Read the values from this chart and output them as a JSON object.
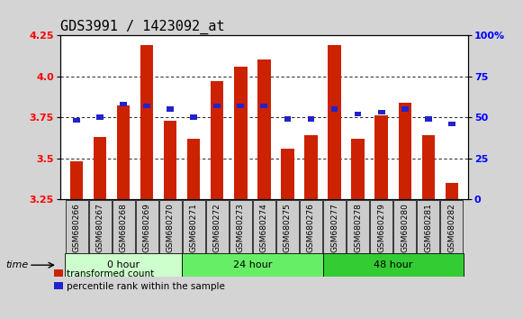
{
  "title": "GDS3991 / 1423092_at",
  "samples": [
    "GSM680266",
    "GSM680267",
    "GSM680268",
    "GSM680269",
    "GSM680270",
    "GSM680271",
    "GSM680272",
    "GSM680273",
    "GSM680274",
    "GSM680275",
    "GSM680276",
    "GSM680277",
    "GSM680278",
    "GSM680279",
    "GSM680280",
    "GSM680281",
    "GSM680282"
  ],
  "bar_values": [
    3.48,
    3.63,
    3.82,
    4.19,
    3.73,
    3.62,
    3.97,
    4.06,
    4.1,
    3.56,
    3.64,
    4.19,
    3.62,
    3.76,
    3.84,
    3.64,
    3.35
  ],
  "blue_pct": [
    48,
    50,
    58,
    57,
    55,
    50,
    57,
    57,
    57,
    49,
    49,
    55,
    52,
    53,
    55,
    49,
    46
  ],
  "ymin": 3.25,
  "ymax": 4.25,
  "yticks_left": [
    3.25,
    3.5,
    3.75,
    4.0,
    4.25
  ],
  "yticks_right": [
    0,
    25,
    50,
    75,
    100
  ],
  "bar_color": "#cc2200",
  "blue_color": "#2222cc",
  "groups": [
    {
      "label": "0 hour",
      "start": 0,
      "end": 5,
      "color": "#ccffcc"
    },
    {
      "label": "24 hour",
      "start": 5,
      "end": 11,
      "color": "#66ee66"
    },
    {
      "label": "48 hour",
      "start": 11,
      "end": 17,
      "color": "#33cc33"
    }
  ],
  "bg_color": "#d4d4d4",
  "plot_bg": "#ffffff",
  "xtick_bg": "#cccccc"
}
